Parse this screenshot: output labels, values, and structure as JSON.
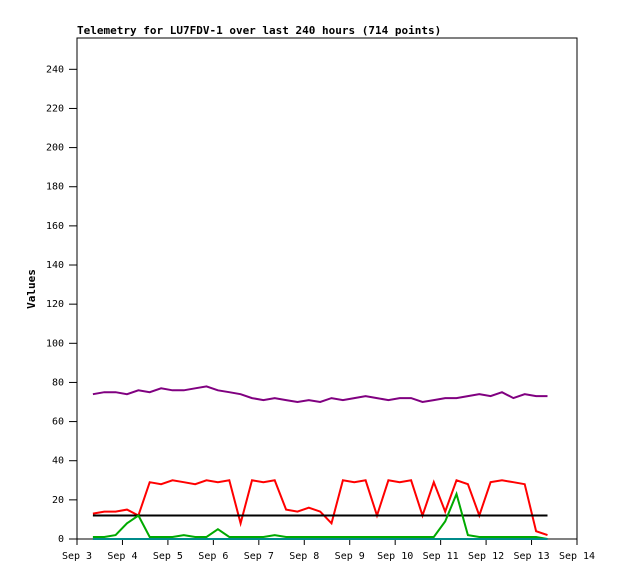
{
  "chart_data": {
    "type": "line",
    "title": "Telemetry for LU7FDV-1 over last 240 hours (714 points)",
    "y_label": "Values",
    "x": [
      3.35,
      3.6,
      3.85,
      4.1,
      4.35,
      4.6,
      4.85,
      5.1,
      5.35,
      5.6,
      5.85,
      6.1,
      6.35,
      6.6,
      6.85,
      7.1,
      7.35,
      7.6,
      7.85,
      8.1,
      8.35,
      8.6,
      8.85,
      9.1,
      9.35,
      9.6,
      9.85,
      10.1,
      10.35,
      10.6,
      10.85,
      11.1,
      11.35,
      11.6,
      11.85,
      12.1,
      12.35,
      12.6,
      12.85,
      13.1,
      13.35
    ],
    "series": [
      {
        "color": "#800080",
        "values": [
          74,
          75,
          75,
          74,
          76,
          75,
          77,
          76,
          76,
          77,
          78,
          76,
          75,
          74,
          72,
          71,
          72,
          71,
          70,
          71,
          70,
          72,
          71,
          72,
          73,
          72,
          71,
          72,
          72,
          70,
          71,
          72,
          72,
          73,
          74,
          73,
          75,
          72,
          74,
          73,
          73
        ]
      },
      {
        "color": "#ff0000",
        "values": [
          13,
          14,
          14,
          15,
          12,
          29,
          28,
          30,
          29,
          28,
          30,
          29,
          30,
          8,
          30,
          29,
          30,
          15,
          14,
          16,
          14,
          8,
          30,
          29,
          30,
          12,
          30,
          29,
          30,
          12,
          29,
          14,
          30,
          28,
          12,
          29,
          30,
          29,
          28,
          4,
          2
        ]
      },
      {
        "color": "#000000",
        "values": [
          12,
          12,
          12,
          12,
          12,
          12,
          12,
          12,
          12,
          12,
          12,
          12,
          12,
          12,
          12,
          12,
          12,
          12,
          12,
          12,
          12,
          12,
          12,
          12,
          12,
          12,
          12,
          12,
          12,
          12,
          12,
          12,
          12,
          12,
          12,
          12,
          12,
          12,
          12,
          12,
          12
        ]
      },
      {
        "color": "#00aa00",
        "values": [
          1,
          1,
          2,
          8,
          12,
          1,
          1,
          1,
          2,
          1,
          1,
          5,
          1,
          1,
          1,
          1,
          2,
          1,
          1,
          1,
          1,
          1,
          1,
          1,
          1,
          1,
          1,
          1,
          1,
          1,
          1,
          9,
          23,
          2,
          1,
          1,
          1,
          1,
          1,
          1,
          0
        ]
      },
      {
        "color": "#008b8b",
        "values": [
          0,
          0,
          0,
          0,
          0,
          0,
          0,
          0,
          0,
          0,
          0,
          0,
          0,
          0,
          0,
          0,
          0,
          0,
          0,
          0,
          0,
          0,
          0,
          0,
          0,
          0,
          0,
          0,
          0,
          0,
          0,
          0,
          0,
          0,
          0,
          0,
          0,
          0,
          0,
          0,
          0
        ]
      }
    ],
    "xlim": [
      3,
      14
    ],
    "xticks": [
      {
        "value": 3,
        "label": "Sep 3"
      },
      {
        "value": 4,
        "label": "Sep 4"
      },
      {
        "value": 5,
        "label": "Sep 5"
      },
      {
        "value": 6,
        "label": "Sep 6"
      },
      {
        "value": 7,
        "label": "Sep 7"
      },
      {
        "value": 8,
        "label": "Sep 8"
      },
      {
        "value": 9,
        "label": "Sep 9"
      },
      {
        "value": 10,
        "label": "Sep 10"
      },
      {
        "value": 11,
        "label": "Sep 11"
      },
      {
        "value": 12,
        "label": "Sep 12"
      },
      {
        "value": 13,
        "label": "Sep 13"
      },
      {
        "value": 14,
        "label": "Sep 14"
      }
    ],
    "ylim": [
      0,
      256
    ],
    "yticks": [
      0,
      20,
      40,
      60,
      80,
      100,
      120,
      140,
      160,
      180,
      200,
      220,
      240
    ],
    "grid": false
  }
}
